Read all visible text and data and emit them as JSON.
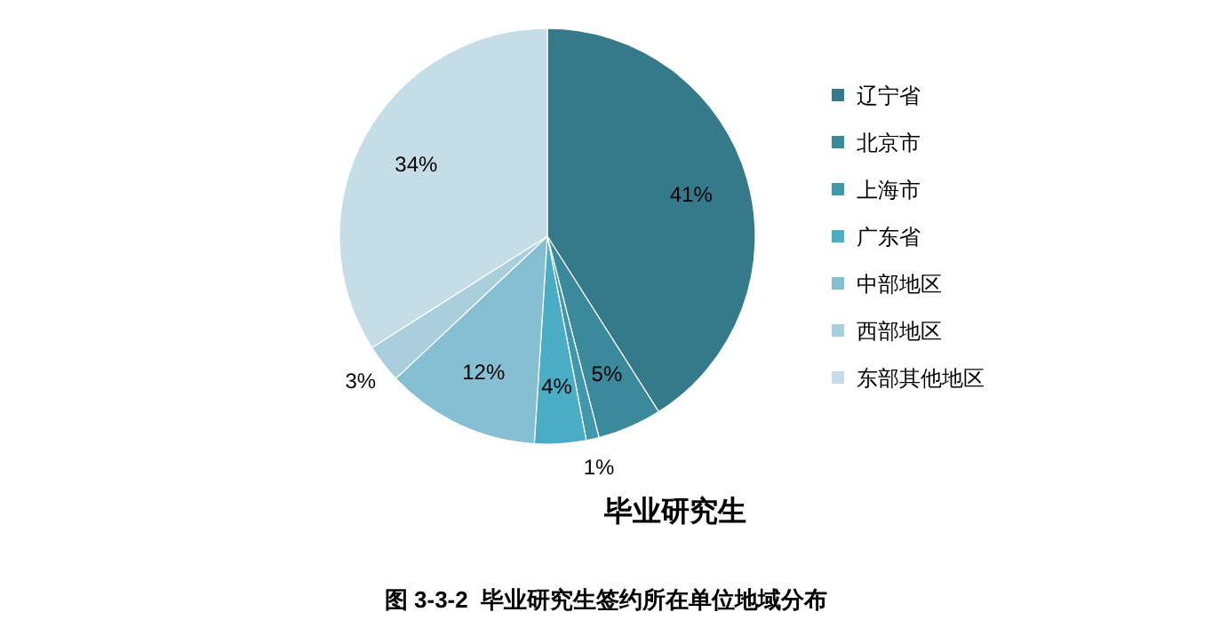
{
  "chart_data": {
    "type": "pie",
    "title": "毕业研究生",
    "annotations": [
      "图 3-3-2  毕业研究生签约所在单位地域分布"
    ],
    "categories": [
      "辽宁省",
      "北京市",
      "上海市",
      "广东省",
      "中部地区",
      "西部地区",
      "东部其他地区"
    ],
    "values": [
      41,
      5,
      1,
      4,
      12,
      3,
      34
    ],
    "value_labels": [
      "41%",
      "5%",
      "1%",
      "4%",
      "12%",
      "3%",
      "34%"
    ],
    "colors": [
      "#347a8a",
      "#3a8a9c",
      "#4198ad",
      "#4bacc6",
      "#86bfd1",
      "#a9cfdc",
      "#c5dde6"
    ],
    "legend": "right"
  }
}
